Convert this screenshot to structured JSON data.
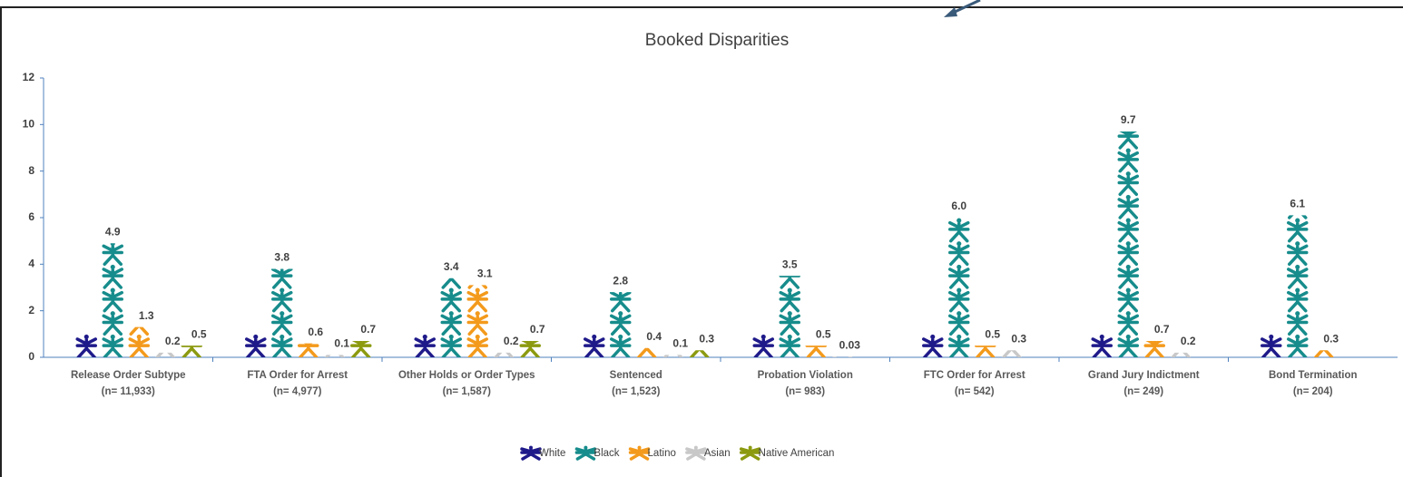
{
  "chart_data": {
    "type": "pictograph",
    "title": "Booked Disparities",
    "categories": [
      "Release Order Subtype",
      "FTA Order for Arrest",
      "Other Holds or Order Types",
      "Sentenced",
      "Probation Violation",
      "FTC Order for Arrest",
      "Grand Jury Indictment",
      "Bond Termination"
    ],
    "category_counts": [
      "(n= 11,933)",
      "(n= 4,977)",
      "(n= 1,587)",
      "(n= 1,523)",
      "(n= 983)",
      "(n= 542)",
      "(n= 249)",
      "(n= 204)"
    ],
    "series": [
      {
        "name": "White",
        "color": "#1f1a8a",
        "values": [
          1,
          1,
          1,
          1,
          1,
          1,
          1,
          1
        ]
      },
      {
        "name": "Black",
        "color": "#178c8c",
        "values": [
          4.9,
          3.8,
          3.4,
          2.8,
          3.5,
          6.0,
          9.7,
          6.1
        ],
        "value_labels": [
          "4.9",
          "3.8",
          "3.4",
          "2.8",
          "3.5",
          "6.0",
          "9.7",
          "6.1"
        ]
      },
      {
        "name": "Latino",
        "color": "#f39a1c",
        "values": [
          1.3,
          0.6,
          3.1,
          0.4,
          0.5,
          0.5,
          0.7,
          0.3
        ],
        "value_labels": [
          "1.3",
          "0.6",
          "3.1",
          "0.4",
          "0.5",
          "0.5",
          "0.7",
          "0.3"
        ]
      },
      {
        "name": "Asian",
        "color": "#c8c8c8",
        "values": [
          0.2,
          0.1,
          0.2,
          0.1,
          0.03,
          0.3,
          0.2,
          null
        ],
        "value_labels": [
          "0.2",
          "0.1",
          "0.2",
          "0.1",
          "0.03",
          "0.3",
          "0.2",
          null
        ]
      },
      {
        "name": "Native American",
        "color": "#8c9a10",
        "values": [
          0.5,
          0.7,
          0.7,
          0.3,
          null,
          null,
          null,
          null
        ],
        "value_labels": [
          "0.5",
          "0.7",
          "0.7",
          "0.3",
          null,
          null,
          null,
          null
        ]
      }
    ],
    "ylim": [
      0,
      12
    ],
    "yticks": [
      0,
      2,
      4,
      6,
      8,
      10,
      12
    ]
  }
}
